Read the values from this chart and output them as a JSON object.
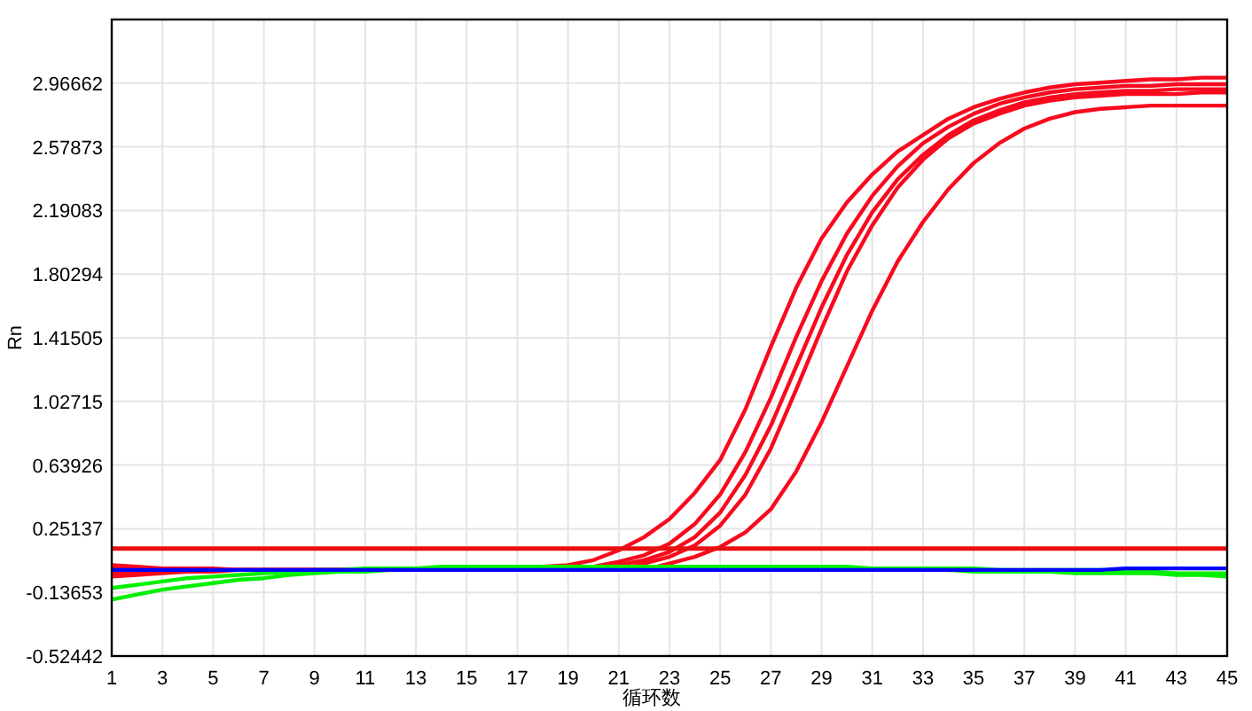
{
  "chart_data": {
    "type": "line",
    "xlabel": "循环数",
    "ylabel": "Rn",
    "x": [
      1,
      2,
      3,
      4,
      5,
      6,
      7,
      8,
      9,
      10,
      11,
      12,
      13,
      14,
      15,
      16,
      17,
      18,
      19,
      20,
      21,
      22,
      23,
      24,
      25,
      26,
      27,
      28,
      29,
      30,
      31,
      32,
      33,
      34,
      35,
      36,
      37,
      38,
      39,
      40,
      41,
      42,
      43,
      44,
      45
    ],
    "series": [
      {
        "color": "#f80a1e",
        "values": [
          -0.03,
          -0.02,
          -0.01,
          -0.01,
          0,
          0,
          0,
          0,
          0,
          0,
          0,
          0,
          0,
          0,
          0,
          0,
          0.01,
          0.02,
          0.03,
          0.06,
          0.12,
          0.2,
          0.31,
          0.47,
          0.67,
          0.98,
          1.36,
          1.72,
          2.02,
          2.24,
          2.41,
          2.55,
          2.65,
          2.75,
          2.82,
          2.87,
          2.91,
          2.94,
          2.96,
          2.97,
          2.98,
          2.99,
          2.99,
          3.0,
          3.0
        ]
      },
      {
        "color": "#f80a1e",
        "values": [
          0.03,
          0.02,
          0.01,
          0.01,
          0.01,
          0,
          0,
          0,
          0,
          0,
          0,
          0,
          0,
          0,
          0,
          0,
          0,
          0,
          0,
          0.02,
          0.05,
          0.09,
          0.16,
          0.28,
          0.46,
          0.72,
          1.05,
          1.42,
          1.76,
          2.05,
          2.28,
          2.46,
          2.6,
          2.7,
          2.78,
          2.84,
          2.88,
          2.91,
          2.93,
          2.94,
          2.95,
          2.95,
          2.96,
          2.96,
          2.96
        ]
      },
      {
        "color": "#f80a1e",
        "values": [
          -0.04,
          -0.03,
          -0.02,
          -0.01,
          -0.01,
          0,
          0,
          0,
          0,
          0,
          0,
          0,
          0,
          0,
          0,
          0,
          0,
          0,
          0,
          0,
          0.03,
          0.06,
          0.11,
          0.2,
          0.35,
          0.58,
          0.88,
          1.24,
          1.6,
          1.92,
          2.18,
          2.38,
          2.53,
          2.65,
          2.74,
          2.8,
          2.85,
          2.88,
          2.9,
          2.91,
          2.92,
          2.92,
          2.93,
          2.93,
          2.93
        ]
      },
      {
        "color": "#f80a1e",
        "values": [
          0.02,
          0.01,
          0.01,
          0,
          0,
          0,
          0,
          0,
          0,
          0,
          0,
          0,
          0,
          0,
          0,
          0,
          0,
          0,
          0,
          0,
          0,
          0.04,
          0.08,
          0.15,
          0.27,
          0.46,
          0.74,
          1.1,
          1.47,
          1.82,
          2.1,
          2.33,
          2.5,
          2.63,
          2.72,
          2.78,
          2.83,
          2.86,
          2.88,
          2.89,
          2.9,
          2.9,
          2.9,
          2.91,
          2.91
        ]
      },
      {
        "color": "#f80a1e",
        "values": [
          -0.02,
          -0.01,
          -0.01,
          0,
          0,
          0,
          0,
          0,
          0,
          0,
          0,
          0,
          0,
          0,
          0,
          0,
          0,
          0,
          0,
          0,
          0,
          0,
          0.04,
          0.08,
          0.14,
          0.23,
          0.37,
          0.6,
          0.9,
          1.24,
          1.58,
          1.88,
          2.12,
          2.32,
          2.48,
          2.6,
          2.69,
          2.75,
          2.79,
          2.81,
          2.82,
          2.83,
          2.83,
          2.83,
          2.83
        ]
      },
      {
        "color": "#00f000",
        "values": [
          -0.11,
          -0.09,
          -0.07,
          -0.05,
          -0.04,
          -0.03,
          -0.02,
          -0.01,
          0,
          0,
          0.01,
          0.01,
          0.01,
          0.02,
          0.02,
          0.02,
          0.02,
          0.02,
          0.02,
          0.02,
          0.02,
          0.02,
          0.02,
          0.02,
          0.02,
          0.02,
          0.02,
          0.02,
          0.02,
          0.02,
          0.01,
          0.01,
          0.01,
          0.01,
          0.01,
          0,
          0,
          0,
          0,
          0,
          -0.01,
          -0.01,
          -0.02,
          -0.02,
          -0.02
        ]
      },
      {
        "color": "#00f000",
        "values": [
          -0.18,
          -0.15,
          -0.12,
          -0.1,
          -0.08,
          -0.06,
          -0.05,
          -0.03,
          -0.02,
          -0.01,
          -0.01,
          0,
          0,
          0,
          0,
          0,
          0,
          0,
          0,
          0,
          0,
          0,
          0,
          0,
          0,
          0,
          0,
          0,
          0,
          0,
          0,
          0,
          0,
          0,
          -0.01,
          -0.01,
          -0.01,
          -0.01,
          -0.02,
          -0.02,
          -0.02,
          -0.02,
          -0.03,
          -0.03,
          -0.04
        ]
      },
      {
        "color": "#0000ff",
        "values": [
          0,
          0,
          0,
          0,
          0,
          0,
          0,
          0,
          0,
          0,
          0,
          0,
          0,
          0,
          0,
          0,
          0,
          0,
          0,
          0,
          0,
          0,
          0,
          0,
          0,
          0,
          0,
          0,
          0,
          0,
          0,
          0,
          0,
          0,
          0,
          0,
          0,
          0,
          0,
          0,
          0.01,
          0.01,
          0.01,
          0.01,
          0.01
        ]
      }
    ],
    "xlim": [
      1,
      45
    ],
    "xticks": [
      1,
      3,
      5,
      7,
      9,
      11,
      13,
      15,
      17,
      19,
      21,
      23,
      25,
      27,
      29,
      31,
      33,
      35,
      37,
      39,
      41,
      43,
      45
    ],
    "ylim": [
      -0.52442,
      3.35451
    ],
    "yticks": [
      -0.52442,
      -0.13653,
      0.25137,
      0.63926,
      1.02715,
      1.41505,
      1.80294,
      2.19083,
      2.57873,
      2.96662
    ],
    "grid": true,
    "ref_lines": [
      {
        "axis": "y",
        "value": 0.13,
        "color": "#e81010"
      }
    ]
  }
}
